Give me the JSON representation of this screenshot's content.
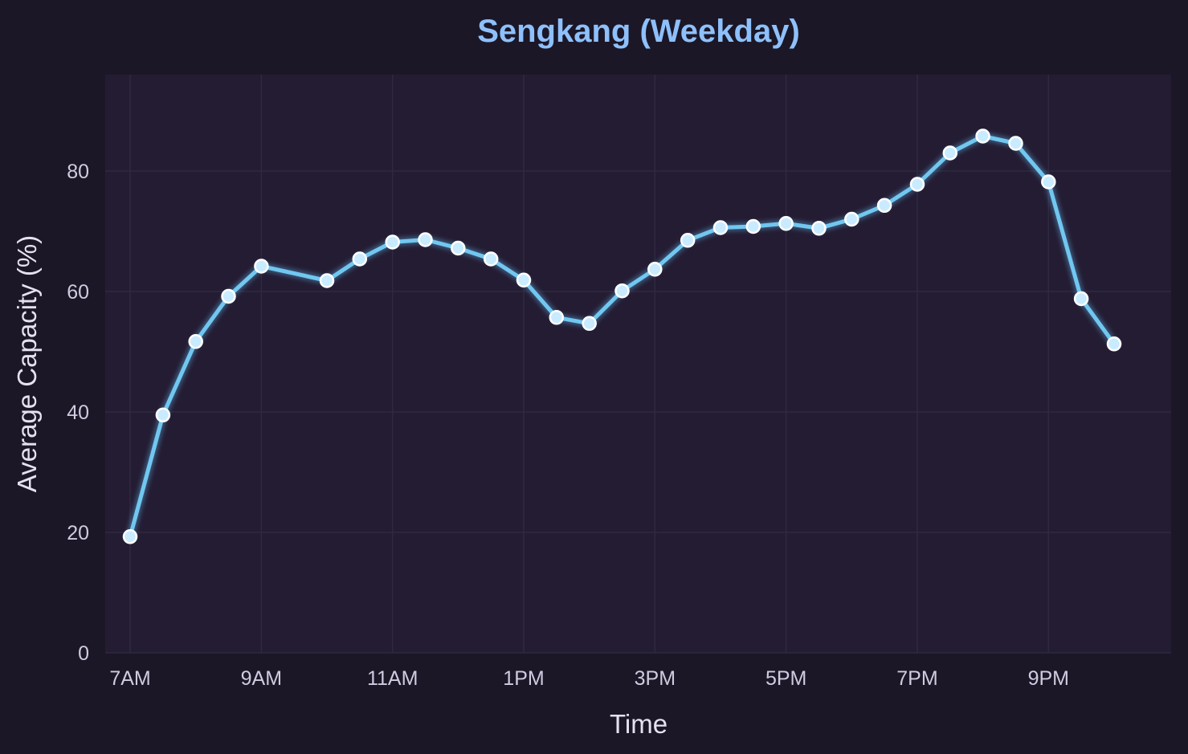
{
  "chart_data": {
    "type": "line",
    "title": "Sengkang (Weekday)",
    "xlabel": "Time",
    "ylabel": "Average Capacity (%)",
    "ylim": [
      0,
      96
    ],
    "yticks": [
      0,
      20,
      40,
      60,
      80
    ],
    "xlim": [
      6.62,
      22.87
    ],
    "xticks": [
      {
        "value": 7,
        "label": "7AM"
      },
      {
        "value": 9,
        "label": "9AM"
      },
      {
        "value": 11,
        "label": "11AM"
      },
      {
        "value": 13,
        "label": "1PM"
      },
      {
        "value": 15,
        "label": "3PM"
      },
      {
        "value": 17,
        "label": "5PM"
      },
      {
        "value": 19,
        "label": "7PM"
      },
      {
        "value": 21,
        "label": "9PM"
      }
    ],
    "grid": true,
    "series": [
      {
        "x": [
          7,
          7.5,
          8,
          8.5,
          9,
          10,
          10.5,
          11,
          11.5,
          12,
          12.5,
          13,
          13.5,
          14,
          14.5,
          15,
          15.5,
          16,
          16.5,
          17,
          17.5,
          18,
          18.5,
          19,
          19.5,
          20,
          20.5,
          21,
          21.5,
          22
        ],
        "values": [
          19.3,
          39.5,
          51.7,
          59.2,
          64.2,
          61.8,
          65.4,
          68.2,
          68.6,
          67.2,
          65.4,
          61.9,
          55.7,
          54.7,
          60.1,
          63.7,
          68.5,
          70.6,
          70.8,
          71.3,
          70.5,
          72.0,
          74.3,
          77.8,
          83.0,
          85.8,
          84.6,
          78.2,
          58.8,
          51.3
        ]
      }
    ]
  },
  "colors": {
    "page_background": "#1b1727",
    "plot_background": "#241c33",
    "grid": "#2f2941",
    "title": "#8ec0fb",
    "axis_text": "#cfcbe0",
    "label_text": "#e5e1f1",
    "line": "#71c7f0",
    "line_glow": "#5aa8d8",
    "marker_fill": "#c9ebff",
    "marker_edge": "#ffffff"
  }
}
